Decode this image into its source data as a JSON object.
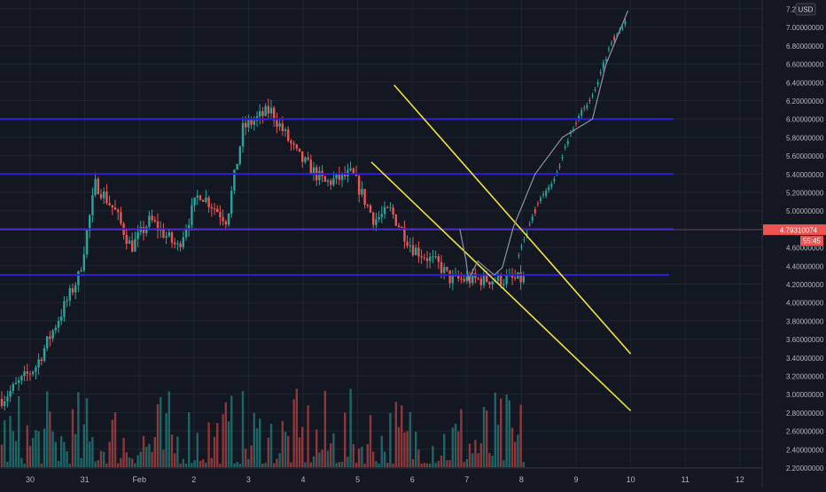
{
  "chart_data": {
    "type": "candlestick",
    "currency": "USD",
    "y_ticks": [
      "7.2",
      "7.00000000",
      "6.80000000",
      "6.60000000",
      "6.40000000",
      "6.20000000",
      "6.00000000",
      "5.80000000",
      "5.60000000",
      "5.40000000",
      "5.20000000",
      "5.00000000",
      "4.80000000",
      "4.60000000",
      "4.40000000",
      "4.20000000",
      "4.00000000",
      "3.80000000",
      "3.60000000",
      "3.40000000",
      "3.20000000",
      "3.00000000",
      "2.80000000",
      "2.60000000",
      "2.40000000",
      "2.20000000"
    ],
    "x_ticks": [
      "30",
      "31",
      "Feb",
      "2",
      "3",
      "4",
      "5",
      "6",
      "7",
      "8",
      "9",
      "10",
      "11",
      "12"
    ],
    "ylim": [
      2.2,
      7.25
    ],
    "price_label": "4.79310074",
    "countdown_label": "55:45",
    "last_price": 4.7931,
    "horizontal_levels": [
      6.0,
      5.4,
      4.8,
      4.3
    ],
    "channel_lines": [
      {
        "start": [
          "Feb 5 16:00",
          6.37
        ],
        "end": [
          "Feb 10 00:00",
          3.44
        ]
      },
      {
        "start": [
          "Feb 5 06:00",
          5.53
        ],
        "end": [
          "Feb 10 00:00",
          2.82
        ]
      }
    ],
    "projection_path": [
      4.8,
      4.47,
      4.25,
      4.45,
      4.3,
      4.38,
      4.82,
      5.4,
      5.8,
      6.0,
      6.6,
      7.18
    ],
    "key_prices": [
      2.95,
      3.3,
      3.8,
      4.3,
      5.3,
      5.0,
      4.6,
      4.9,
      4.6,
      5.2,
      4.9,
      5.9,
      6.1,
      5.6,
      5.3,
      5.4,
      4.9,
      5.0,
      4.6,
      4.4,
      4.25
    ]
  },
  "colors": {
    "background": "#131722",
    "grid": "#1f2433",
    "up": "#26a69a",
    "down": "#ef5350",
    "level_line": "#2f1fd6",
    "channel": "#f0e032",
    "path": "#8a93a6",
    "axis_text": "#b2b5be",
    "price_tag": "#ef5350"
  }
}
